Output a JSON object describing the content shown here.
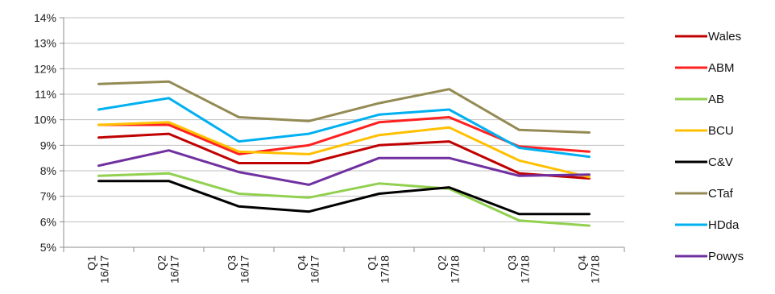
{
  "chart_data": {
    "type": "line",
    "title": "",
    "xlabel": "",
    "ylabel": "",
    "ylim": [
      5,
      14
    ],
    "y_ticks": [
      "5%",
      "6%",
      "7%",
      "8%",
      "9%",
      "10%",
      "11%",
      "12%",
      "13%",
      "14%"
    ],
    "categories": [
      [
        "Q1",
        "16/17"
      ],
      [
        "Q2",
        "16/17"
      ],
      [
        "Q3",
        "16/17"
      ],
      [
        "Q4",
        "16/17"
      ],
      [
        "Q1",
        "17/18"
      ],
      [
        "Q2",
        "17/18"
      ],
      [
        "Q3",
        "17/18"
      ],
      [
        "Q4",
        "17/18"
      ]
    ],
    "grid": true,
    "legend_position": "right",
    "series": [
      {
        "name": "Wales",
        "color": "#c00000",
        "values": [
          9.3,
          9.45,
          8.3,
          8.3,
          9.0,
          9.15,
          7.9,
          7.7
        ]
      },
      {
        "name": "ABM",
        "color": "#ff2020",
        "values": [
          9.8,
          9.8,
          8.65,
          9.0,
          9.9,
          10.1,
          8.95,
          8.75
        ]
      },
      {
        "name": "AB",
        "color": "#92d050",
        "values": [
          7.8,
          7.9,
          7.1,
          6.95,
          7.5,
          7.3,
          6.05,
          5.85
        ]
      },
      {
        "name": "BCU",
        "color": "#ffc000",
        "values": [
          9.8,
          9.9,
          8.75,
          8.65,
          9.4,
          9.7,
          8.4,
          7.75
        ]
      },
      {
        "name": "C&V",
        "color": "#000000",
        "values": [
          7.6,
          7.6,
          6.6,
          6.4,
          7.1,
          7.35,
          6.3,
          6.3
        ]
      },
      {
        "name": "CTaf",
        "color": "#948a54",
        "values": [
          11.4,
          11.5,
          10.1,
          9.95,
          10.65,
          11.2,
          9.6,
          9.5
        ]
      },
      {
        "name": "HDda",
        "color": "#00b0f0",
        "values": [
          10.4,
          10.85,
          9.15,
          9.45,
          10.2,
          10.4,
          8.9,
          8.55
        ]
      },
      {
        "name": "Powys",
        "color": "#7030a0",
        "values": [
          8.2,
          8.8,
          7.95,
          7.45,
          8.5,
          8.5,
          7.8,
          7.85
        ]
      }
    ]
  }
}
